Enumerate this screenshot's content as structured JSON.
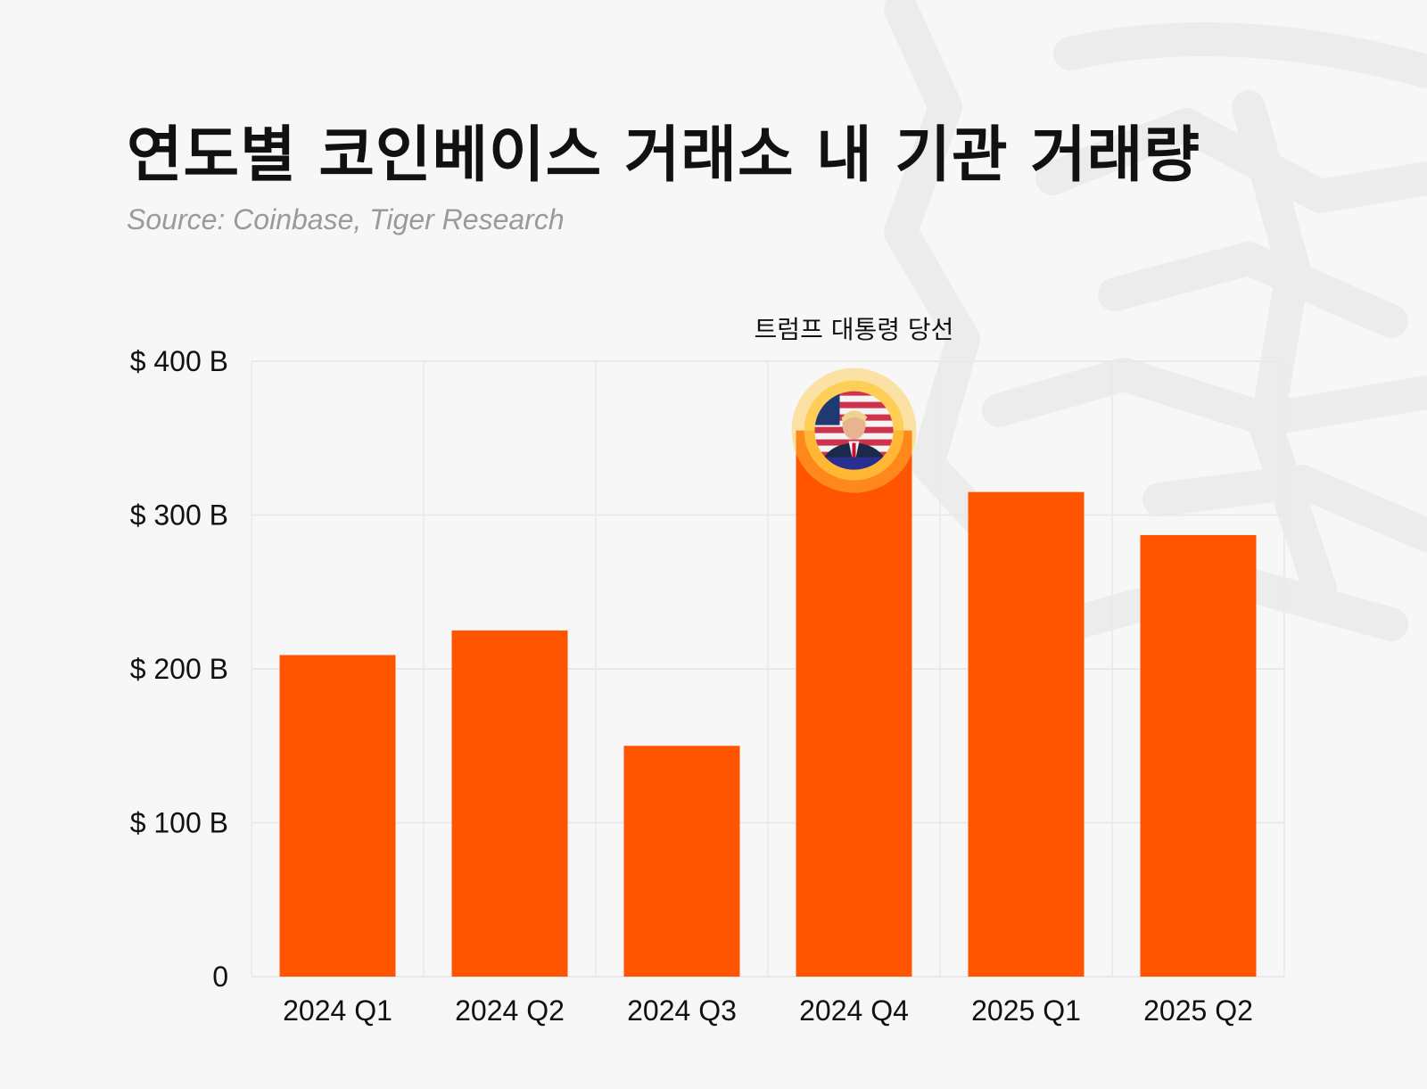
{
  "colors": {
    "bar": "#FF5500",
    "background": "#f7f7f7",
    "grid": "#e9e9e9",
    "highlight_ring": "#FFC73D"
  },
  "chart_data": {
    "type": "bar",
    "title": "연도별 코인베이스 거래소 내 기관 거래량",
    "subtitle": "Source: Coinbase, Tiger Research",
    "categories": [
      "2024 Q1",
      "2024 Q2",
      "2024 Q3",
      "2024 Q4",
      "2025 Q1",
      "2025 Q2"
    ],
    "values": [
      209,
      225,
      150,
      355,
      315,
      287
    ],
    "unit": "B USD",
    "ylim": [
      0,
      400
    ],
    "yticks": [
      0,
      100,
      200,
      300,
      400
    ],
    "ytick_labels": [
      "0",
      "$ 100 B",
      "$ 200 B",
      "$ 300 B",
      "$ 400 B"
    ],
    "xlabel": "",
    "ylabel": "",
    "grid": true,
    "annotation": {
      "category": "2024 Q4",
      "label": "트럼프 대통령 당선",
      "icon": "trump-portrait-icon"
    }
  }
}
